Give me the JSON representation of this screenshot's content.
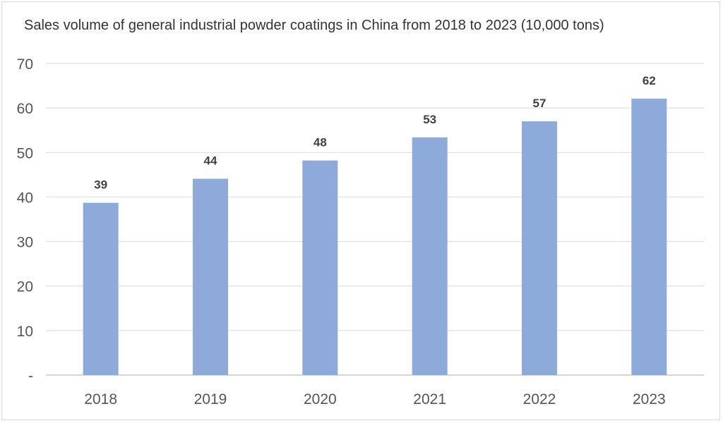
{
  "chart_data": {
    "type": "bar",
    "title": "Sales volume of general industrial powder coatings in China from 2018 to 2023 (10,000 tons)",
    "xlabel": "",
    "ylabel": "",
    "categories": [
      "2018",
      "2019",
      "2020",
      "2021",
      "2022",
      "2023"
    ],
    "values": [
      38.7,
      44.1,
      48.2,
      53.4,
      57.0,
      62.1
    ],
    "data_labels": [
      "39",
      "44",
      "48",
      "53",
      "57",
      "62"
    ],
    "ylim": [
      0,
      70
    ],
    "yticks": [
      0,
      10,
      20,
      30,
      40,
      50,
      60,
      70
    ],
    "ytick_labels": [
      "-",
      "10",
      "20",
      "30",
      "40",
      "50",
      "60",
      "70"
    ],
    "grid": true,
    "legend": "none",
    "bar_color": "#8eaadb",
    "grid_color": "#d9d9d9"
  }
}
